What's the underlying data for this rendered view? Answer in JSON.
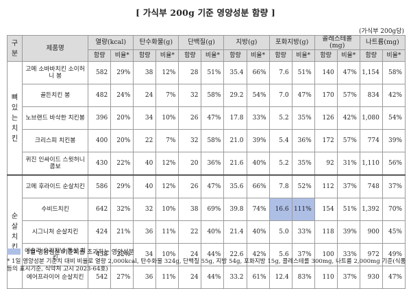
{
  "title": "[ 가식부 200g 기준 영양성분 함량 ]",
  "unit": "(가식부 200g당)",
  "header": {
    "group_col": "구분",
    "product_col": "제품명",
    "nutrients": [
      "열량(kcal)",
      "탄수화물(g)",
      "단백질(g)",
      "지방(g)",
      "포화지방(g)",
      "콜레스테롤(mg)",
      "나트륨(mg)"
    ],
    "content": "함량",
    "ratio": "비율*"
  },
  "groups": [
    {
      "label": "뼈있는치킨",
      "rows": [
        {
          "name": "고메 소바바치킨 소이허니 봉",
          "values": [
            "582",
            "29%",
            "38",
            "12%",
            "28",
            "51%",
            "35.4",
            "66%",
            "7.6",
            "51%",
            "140",
            "47%",
            "1,154",
            "58%"
          ]
        },
        {
          "name": "골든치킨 봉",
          "values": [
            "482",
            "24%",
            "24",
            "7%",
            "32",
            "58%",
            "29.2",
            "54%",
            "7.0",
            "47%",
            "170",
            "57%",
            "834",
            "42%"
          ]
        },
        {
          "name": "노브랜드 바삭한 치킨봉",
          "values": [
            "396",
            "20%",
            "34",
            "10%",
            "26",
            "47%",
            "17.8",
            "33%",
            "5.2",
            "35%",
            "126",
            "42%",
            "1,080",
            "54%"
          ]
        },
        {
          "name": "크리스피 치킨봉",
          "values": [
            "400",
            "20%",
            "22",
            "7%",
            "32",
            "58%",
            "21.0",
            "39%",
            "5.4",
            "36%",
            "172",
            "57%",
            "774",
            "39%"
          ]
        },
        {
          "name": "퀴진 인싸이드 스윗허니 콤보",
          "values": [
            "430",
            "22%",
            "40",
            "12%",
            "20",
            "36%",
            "21.6",
            "40%",
            "5.2",
            "35%",
            "92",
            "31%",
            "1,110",
            "56%"
          ]
        }
      ]
    },
    {
      "label": "순살치킨",
      "rows": [
        {
          "name": "고메 후라이드 순살치킨",
          "values": [
            "586",
            "29%",
            "40",
            "12%",
            "26",
            "47%",
            "35.6",
            "66%",
            "7.8",
            "52%",
            "112",
            "37%",
            "748",
            "37%"
          ]
        },
        {
          "name": "수비드치킨",
          "values": [
            "642",
            "32%",
            "32",
            "10%",
            "38",
            "69%",
            "39.8",
            "74%",
            "16.6",
            "111%",
            "154",
            "51%",
            "1,392",
            "70%"
          ],
          "highlight": [
            8,
            9
          ]
        },
        {
          "name": "시그니처 순살치킨",
          "values": [
            "424",
            "21%",
            "36",
            "11%",
            "22",
            "40%",
            "21.4",
            "40%",
            "5.0",
            "33%",
            "118",
            "39%",
            "900",
            "45%"
          ]
        },
        {
          "name": "애슐리 오리지널 통살 치킨",
          "values": [
            "438",
            "22%",
            "34",
            "10%",
            "24",
            "44%",
            "22.6",
            "42%",
            "5.6",
            "37%",
            "100",
            "33%",
            "972",
            "49%"
          ]
        },
        {
          "name": "에어프라이어 순살치킨",
          "values": [
            "542",
            "27%",
            "36",
            "11%",
            "24",
            "44%",
            "33.2",
            "61%",
            "12.4",
            "83%",
            "110",
            "37%",
            "930",
            "47%"
          ]
        }
      ]
    }
  ],
  "legend": "1일 영양성분 기준치를 초과하는 영양성분",
  "note": "* 1일 영양성분 기준치 대비 비율로 열량 2,000kcal, 탄수화물 324g, 단백질 55g, 지방 54g, 포화지방 15g, 콜레스테롤 300mg, 나트륨 2,000mg 기준(식품등의 표시기준, 식약처 고시 2023-64호)",
  "colors": {
    "highlight": "#aebfe6",
    "header_bg": "#dcdcdc"
  }
}
